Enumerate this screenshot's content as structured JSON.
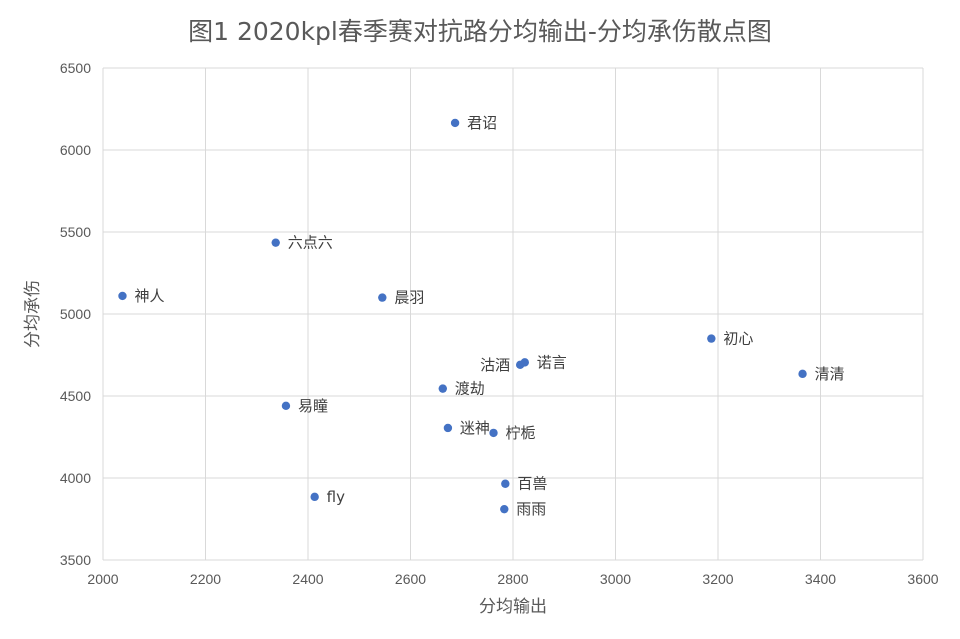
{
  "chart_data": {
    "type": "scatter",
    "title": "图1 2020kpl春季赛对抗路分均输出-分均承伤散点图",
    "xlabel": "分均输出",
    "ylabel": "分均承伤",
    "xlim": [
      2000,
      3600
    ],
    "ylim": [
      3500,
      6500
    ],
    "xticks": [
      2000,
      2200,
      2400,
      2600,
      2800,
      3000,
      3200,
      3400,
      3600
    ],
    "yticks": [
      3500,
      4000,
      4500,
      5000,
      5500,
      6000,
      6500
    ],
    "grid": true,
    "color": "#4472c4",
    "points": [
      {
        "label": "君诏",
        "x": 2687,
        "y": 6165,
        "label_pos": "right"
      },
      {
        "label": "六点六",
        "x": 2337,
        "y": 5435,
        "label_pos": "right"
      },
      {
        "label": "神人",
        "x": 2038,
        "y": 5110,
        "label_pos": "right"
      },
      {
        "label": "晨羽",
        "x": 2545,
        "y": 5100,
        "label_pos": "right"
      },
      {
        "label": "初心",
        "x": 3187,
        "y": 4850,
        "label_pos": "right"
      },
      {
        "label": "诺言",
        "x": 2823,
        "y": 4705,
        "label_pos": "right"
      },
      {
        "label": "沽酒",
        "x": 2814,
        "y": 4690,
        "label_pos": "left"
      },
      {
        "label": "清清",
        "x": 3365,
        "y": 4635,
        "label_pos": "right"
      },
      {
        "label": "渡劫",
        "x": 2663,
        "y": 4545,
        "label_pos": "right"
      },
      {
        "label": "易瞳",
        "x": 2357,
        "y": 4440,
        "label_pos": "right"
      },
      {
        "label": "迷神",
        "x": 2673,
        "y": 4305,
        "label_pos": "right"
      },
      {
        "label": "柠栀",
        "x": 2762,
        "y": 4275,
        "label_pos": "right"
      },
      {
        "label": "百兽",
        "x": 2785,
        "y": 3965,
        "label_pos": "right"
      },
      {
        "label": "fly",
        "x": 2413,
        "y": 3885,
        "label_pos": "right"
      },
      {
        "label": "雨雨",
        "x": 2783,
        "y": 3810,
        "label_pos": "right"
      }
    ]
  }
}
